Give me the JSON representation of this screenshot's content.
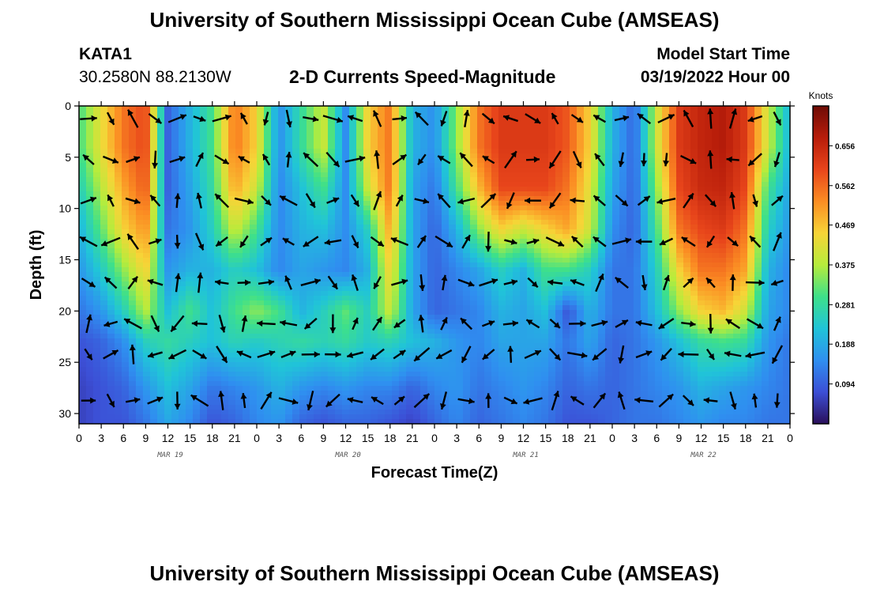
{
  "header": {
    "title": "University of Southern Mississippi Ocean Cube (AMSEAS)",
    "station": "KATA1",
    "coords": "30.2580N  88.2130W",
    "plot_title": "2-D Currents Speed-Magnitude",
    "model_start_label": "Model Start Time",
    "model_start_value": "03/19/2022 Hour 00"
  },
  "footer": {
    "title": "University of Southern Mississippi Ocean Cube (AMSEAS)"
  },
  "chart_data": {
    "type": "heatmap",
    "title": "2-D Currents Speed-Magnitude",
    "xlabel": "Forecast Time(Z)",
    "ylabel": "Depth (ft)",
    "x_range_hours": [
      0,
      96
    ],
    "ylim": [
      0,
      31
    ],
    "y_ticks": [
      "0",
      "5",
      "10",
      "15",
      "20",
      "25",
      "30"
    ],
    "y_tick_values": [
      0,
      5,
      10,
      15,
      20,
      25,
      30
    ],
    "x_ticks": [
      "0",
      "3",
      "6",
      "9",
      "12",
      "15",
      "18",
      "21",
      "0",
      "3",
      "6",
      "9",
      "12",
      "15",
      "18",
      "21",
      "0",
      "3",
      "6",
      "9",
      "12",
      "15",
      "18",
      "21",
      "0",
      "3",
      "6",
      "9",
      "12",
      "15",
      "18",
      "21",
      "0"
    ],
    "month_labels": [
      "MAR 19",
      "MAR 20",
      "MAR 21",
      "MAR 22"
    ],
    "month_label_hours": [
      12,
      36,
      60,
      84
    ],
    "colorbar": {
      "units": "Knots",
      "ticks": [
        "0.656",
        "0.562",
        "0.469",
        "0.375",
        "0.281",
        "0.188",
        "0.094"
      ],
      "tick_values": [
        0.656,
        0.562,
        0.469,
        0.375,
        0.281,
        0.188,
        0.094
      ],
      "range": [
        0.0,
        0.75
      ],
      "colors": [
        "#2a0f5a",
        "#3c4fd6",
        "#2f8ff0",
        "#20c4d8",
        "#3ee08a",
        "#b6ec3c",
        "#f7d437",
        "#fb8d23",
        "#e8451b",
        "#b81d0a",
        "#6e0c06"
      ]
    },
    "depths_ft": [
      0,
      4,
      8,
      12,
      16,
      20,
      23,
      27.5,
      31
    ],
    "speed_knots": [
      [
        0.3,
        0.43,
        0.55,
        0.6,
        0.1,
        0.2,
        0.3,
        0.55,
        0.45,
        0.15,
        0.28,
        0.4,
        0.15,
        0.45,
        0.55,
        0.2,
        0.15,
        0.35,
        0.55,
        0.62,
        0.62,
        0.62,
        0.58,
        0.45,
        0.2,
        0.1,
        0.4,
        0.62,
        0.66,
        0.68,
        0.62,
        0.4,
        0.2
      ],
      [
        0.3,
        0.43,
        0.55,
        0.6,
        0.1,
        0.2,
        0.3,
        0.55,
        0.45,
        0.15,
        0.28,
        0.4,
        0.15,
        0.45,
        0.55,
        0.2,
        0.15,
        0.35,
        0.55,
        0.62,
        0.62,
        0.62,
        0.58,
        0.45,
        0.2,
        0.1,
        0.4,
        0.62,
        0.66,
        0.68,
        0.62,
        0.4,
        0.2
      ],
      [
        0.25,
        0.38,
        0.5,
        0.58,
        0.1,
        0.18,
        0.28,
        0.5,
        0.4,
        0.14,
        0.22,
        0.3,
        0.15,
        0.4,
        0.55,
        0.18,
        0.12,
        0.3,
        0.48,
        0.6,
        0.6,
        0.6,
        0.55,
        0.42,
        0.18,
        0.1,
        0.35,
        0.6,
        0.65,
        0.66,
        0.6,
        0.3,
        0.18
      ],
      [
        0.2,
        0.32,
        0.45,
        0.52,
        0.12,
        0.16,
        0.25,
        0.4,
        0.3,
        0.14,
        0.2,
        0.22,
        0.15,
        0.25,
        0.5,
        0.18,
        0.1,
        0.2,
        0.35,
        0.45,
        0.4,
        0.45,
        0.5,
        0.4,
        0.15,
        0.1,
        0.3,
        0.55,
        0.6,
        0.62,
        0.55,
        0.25,
        0.16
      ],
      [
        0.16,
        0.24,
        0.35,
        0.45,
        0.16,
        0.2,
        0.2,
        0.25,
        0.22,
        0.14,
        0.18,
        0.16,
        0.14,
        0.2,
        0.45,
        0.18,
        0.1,
        0.14,
        0.18,
        0.25,
        0.2,
        0.3,
        0.3,
        0.25,
        0.12,
        0.12,
        0.25,
        0.45,
        0.55,
        0.55,
        0.5,
        0.2,
        0.14
      ],
      [
        0.12,
        0.16,
        0.25,
        0.38,
        0.22,
        0.3,
        0.22,
        0.3,
        0.35,
        0.3,
        0.2,
        0.25,
        0.32,
        0.25,
        0.4,
        0.18,
        0.1,
        0.12,
        0.14,
        0.2,
        0.18,
        0.22,
        0.08,
        0.2,
        0.12,
        0.12,
        0.22,
        0.35,
        0.45,
        0.48,
        0.4,
        0.18,
        0.14
      ],
      [
        0.08,
        0.1,
        0.15,
        0.25,
        0.28,
        0.25,
        0.22,
        0.26,
        0.24,
        0.26,
        0.28,
        0.26,
        0.28,
        0.24,
        0.26,
        0.22,
        0.2,
        0.16,
        0.14,
        0.18,
        0.18,
        0.18,
        0.12,
        0.18,
        0.1,
        0.12,
        0.16,
        0.22,
        0.28,
        0.3,
        0.28,
        0.16,
        0.12
      ],
      [
        0.06,
        0.08,
        0.1,
        0.16,
        0.22,
        0.18,
        0.12,
        0.14,
        0.16,
        0.2,
        0.16,
        0.14,
        0.16,
        0.14,
        0.14,
        0.1,
        0.14,
        0.16,
        0.12,
        0.14,
        0.16,
        0.14,
        0.1,
        0.12,
        0.1,
        0.12,
        0.14,
        0.16,
        0.2,
        0.18,
        0.16,
        0.14,
        0.12
      ],
      [
        0.06,
        0.08,
        0.08,
        0.12,
        0.18,
        0.14,
        0.08,
        0.1,
        0.14,
        0.16,
        0.1,
        0.08,
        0.1,
        0.1,
        0.08,
        0.06,
        0.1,
        0.14,
        0.1,
        0.12,
        0.14,
        0.12,
        0.08,
        0.08,
        0.1,
        0.12,
        0.12,
        0.14,
        0.16,
        0.14,
        0.14,
        0.12,
        0.12
      ]
    ]
  }
}
